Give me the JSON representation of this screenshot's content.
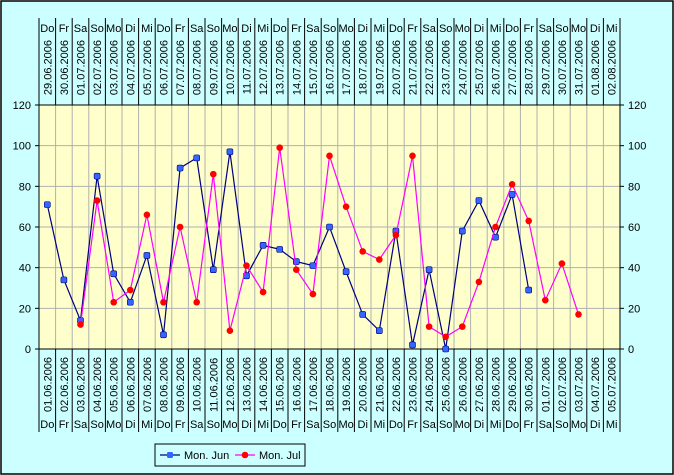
{
  "chart_data": {
    "type": "line",
    "title": "",
    "xlabel": "",
    "ylabel": "",
    "ylim": [
      0,
      120
    ],
    "yticks": [
      0,
      20,
      40,
      60,
      80,
      100,
      120
    ],
    "grid": true,
    "legend_position": "bottom",
    "bottom_axis": {
      "dates": [
        "01.06.2006",
        "02.06.2006",
        "03.06.2006",
        "04.06.2006",
        "05.06.2006",
        "06.06.2006",
        "07.06.2006",
        "08.06.2006",
        "09.06.2006",
        "10.06.2006",
        "11.06.2006",
        "12.06.2006",
        "13.06.2006",
        "14.06.2006",
        "15.06.2006",
        "16.06.2006",
        "17.06.2006",
        "18.06.2006",
        "19.06.2006",
        "20.06.2006",
        "21.06.2006",
        "22.06.2006",
        "23.06.2006",
        "24.06.2006",
        "25.06.2006",
        "26.06.2006",
        "27.06.2006",
        "28.06.2006",
        "29.06.2006",
        "30.06.2006",
        "01.07.2006",
        "02.07.2006",
        "03.07.2006",
        "04.07.2006",
        "05.07.2006"
      ],
      "weekdays": [
        "Do",
        "Fr",
        "Sa",
        "So",
        "Mo",
        "Di",
        "Mi",
        "Do",
        "Fr",
        "Sa",
        "So",
        "Mo",
        "Di",
        "Mi",
        "Do",
        "Fr",
        "Sa",
        "So",
        "Mo",
        "Di",
        "Mi",
        "Do",
        "Fr",
        "Sa",
        "So",
        "Mo",
        "Di",
        "Mi",
        "Do",
        "Fr",
        "Sa",
        "So",
        "Mo",
        "Di",
        "Mi"
      ]
    },
    "top_axis": {
      "dates": [
        "29.06.2006",
        "30.06.2006",
        "01.07.2006",
        "02.07.2006",
        "03.07.2006",
        "04.07.2006",
        "05.07.2006",
        "06.07.2006",
        "07.07.2006",
        "08.07.2006",
        "09.07.2006",
        "10.07.2006",
        "11.07.2006",
        "12.07.2006",
        "13.07.2006",
        "14.07.2006",
        "15.07.2006",
        "16.07.2006",
        "17.07.2006",
        "18.07.2006",
        "19.07.2006",
        "20.07.2006",
        "21.07.2006",
        "22.07.2006",
        "23.07.2006",
        "24.07.2006",
        "25.07.2006",
        "26.07.2006",
        "27.07.2006",
        "28.07.2006",
        "29.07.2006",
        "30.07.2006",
        "31.07.2006",
        "01.08.2006",
        "02.08.2006"
      ],
      "weekdays": [
        "Do",
        "Fr",
        "Sa",
        "So",
        "Mo",
        "Di",
        "Mi",
        "Do",
        "Fr",
        "Sa",
        "So",
        "Mo",
        "Di",
        "Mi",
        "Do",
        "Fr",
        "Sa",
        "So",
        "Mo",
        "Di",
        "Mi",
        "Do",
        "Fr",
        "Sa",
        "So",
        "Mo",
        "Di",
        "Mi",
        "Do",
        "Fr",
        "Sa",
        "So",
        "Mo",
        "Di",
        "Mi"
      ]
    },
    "series": [
      {
        "name": "Mon. Jun",
        "color": "#000080",
        "marker_color": "#3366ff",
        "axis": "bottom",
        "start_index": 0,
        "values": [
          71,
          34,
          14,
          85,
          37,
          23,
          46,
          7,
          89,
          94,
          39,
          97,
          36,
          51,
          49,
          43,
          41,
          60,
          38,
          17,
          9,
          58,
          2,
          39,
          0,
          58,
          73,
          55,
          76,
          29
        ]
      },
      {
        "name": "Mon. Jul",
        "color": "#ff00ff",
        "marker_color": "#ff0000",
        "axis": "top",
        "start_index": 2,
        "values": [
          12,
          73,
          23,
          29,
          66,
          23,
          60,
          23,
          86,
          9,
          41,
          28,
          99,
          39,
          27,
          95,
          70,
          48,
          44,
          56,
          95,
          11,
          6,
          11,
          33,
          60,
          81,
          63,
          24,
          42,
          17
        ]
      }
    ]
  }
}
